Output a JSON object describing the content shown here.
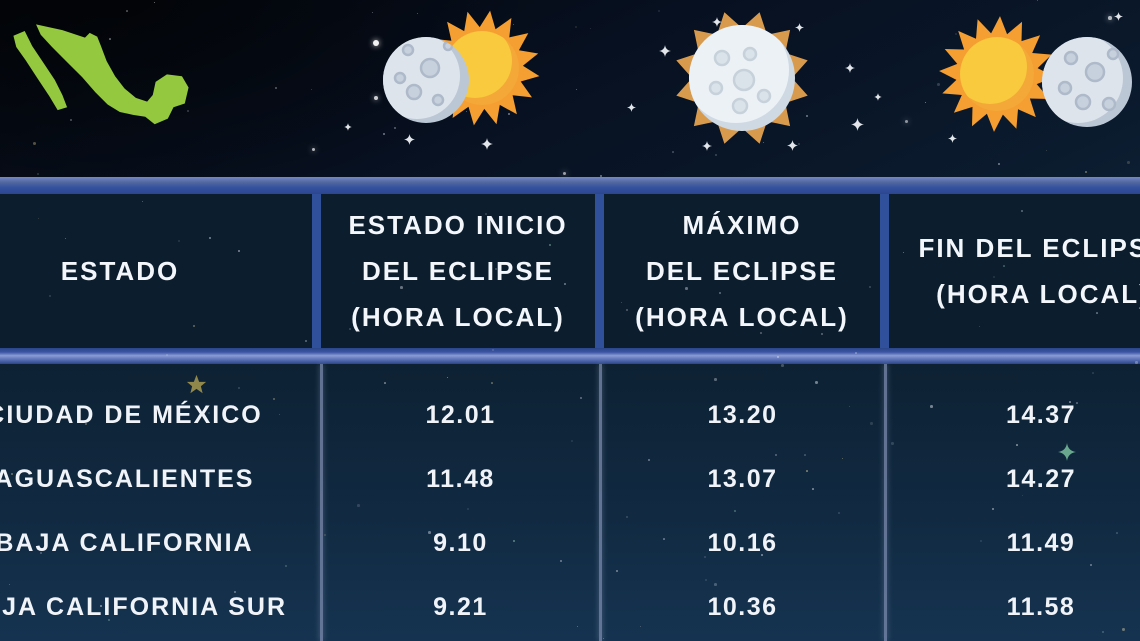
{
  "colors": {
    "background_top": "#04070d",
    "background_bottom": "#143352",
    "bar_blue": "#35539f",
    "bar_blue_light": "#8b9cd4",
    "header_cell_bg": "#0c1d2d",
    "column_divider": "#7d8cb0",
    "text": "#f0f3f8",
    "map_green": "#94c83f",
    "sun_body": "#f9c73c",
    "sun_body_shade": "#f3a838",
    "sun_rays": "#f59e31",
    "sun_rays_muted": "#d89b4e",
    "moon": "#dde4ec",
    "moon_shade": "#bcc7d6",
    "gold_star": "#a89a4f",
    "teal_star": "#7fc9a4"
  },
  "icons": {
    "map": "mexico-map-icon",
    "phases": [
      {
        "name": "eclipse-start-icon",
        "description": "moon overlapping left side of sun"
      },
      {
        "name": "eclipse-maximum-icon",
        "description": "moon fully covering sun, rays visible"
      },
      {
        "name": "eclipse-end-icon",
        "description": "moon leaving right side of sun"
      }
    ],
    "accents": [
      "gold-star-icon",
      "teal-sparkle-icon",
      "sparkle-star-icon"
    ]
  },
  "table": {
    "columns": [
      {
        "id": "estado",
        "label_lines": [
          "ESTADO"
        ]
      },
      {
        "id": "inicio",
        "label_lines": [
          "ESTADO INICIO",
          "DEL ECLIPSE",
          "(HORA LOCAL)"
        ]
      },
      {
        "id": "maximo",
        "label_lines": [
          "MÁXIMO",
          "DEL ECLIPSE",
          "(HORA LOCAL)"
        ]
      },
      {
        "id": "fin",
        "label_lines": [
          "FIN DEL ECLIPSE",
          "(HORA LOCAL)"
        ]
      }
    ],
    "rows": [
      {
        "estado": "CIUDAD DE MÉXICO",
        "inicio": "12.01",
        "maximo": "13.20",
        "fin": "14.37"
      },
      {
        "estado": "AGUASCALIENTES",
        "inicio": "11.48",
        "maximo": "13.07",
        "fin": "14.27"
      },
      {
        "estado": "BAJA CALIFORNIA",
        "inicio": "9.10",
        "maximo": "10.16",
        "fin": "11.49"
      },
      {
        "estado": "BAJA CALIFORNIA SUR",
        "inicio": "9.21",
        "maximo": "10.36",
        "fin": "11.58"
      }
    ]
  },
  "chart_data": {
    "type": "table",
    "title": "",
    "columns": [
      "ESTADO",
      "ESTADO INICIO DEL ECLIPSE (HORA LOCAL)",
      "MÁXIMO DEL ECLIPSE (HORA LOCAL)",
      "FIN DEL ECLIPSE (HORA LOCAL)"
    ],
    "rows": [
      [
        "CIUDAD DE MÉXICO",
        "12.01",
        "13.20",
        "14.37"
      ],
      [
        "AGUASCALIENTES",
        "11.48",
        "13.07",
        "14.27"
      ],
      [
        "BAJA CALIFORNIA",
        "9.10",
        "10.16",
        "11.49"
      ],
      [
        "BAJA CALIFORNIA SUR",
        "9.21",
        "10.36",
        "11.58"
      ]
    ]
  }
}
